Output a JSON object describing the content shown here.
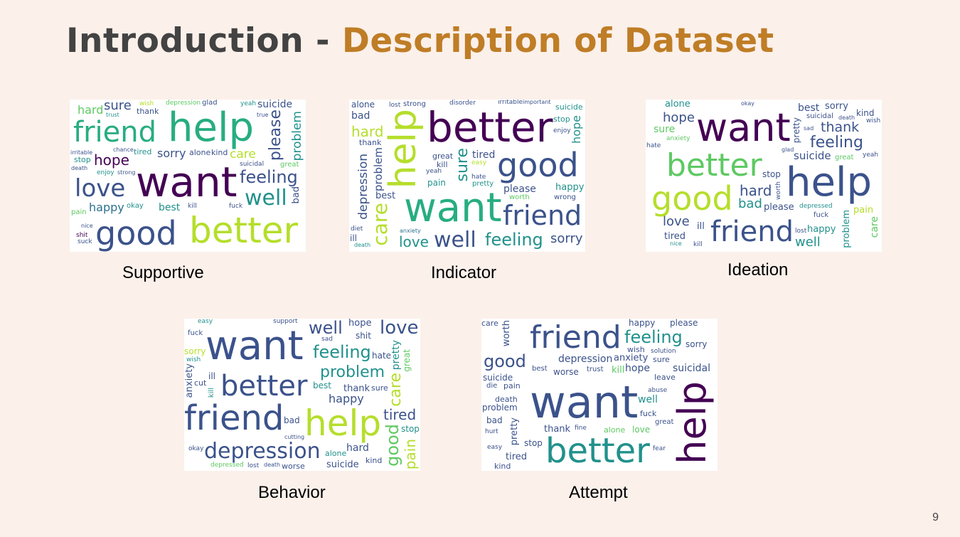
{
  "slide": {
    "title_part1": "Introduction",
    "title_sep": " - ",
    "title_part2": "Description of Dataset",
    "page_number": "9"
  },
  "palette": [
    "#440154",
    "#3b528b",
    "#21918c",
    "#5ec962",
    "#b5de2b",
    "#2c728e",
    "#27ad81",
    "#6ece58"
  ],
  "clouds": [
    {
      "id": "supportive",
      "caption": "Supportive",
      "words": [
        {
          "t": "want",
          "s": 58,
          "c": 0
        },
        {
          "t": "better",
          "s": 50,
          "c": 4
        },
        {
          "t": "help",
          "s": 56,
          "c": 6
        },
        {
          "t": "good",
          "s": 46,
          "c": 1
        },
        {
          "t": "friend",
          "s": 40,
          "c": 6
        },
        {
          "t": "love",
          "s": 34,
          "c": 1
        },
        {
          "t": "well",
          "s": 30,
          "c": 2
        },
        {
          "t": "feeling",
          "s": 24,
          "c": 1
        },
        {
          "t": "please",
          "s": 22,
          "c": 1,
          "v": true
        },
        {
          "t": "hope",
          "s": 20,
          "c": 0
        },
        {
          "t": "problem",
          "s": 17,
          "c": 2,
          "v": true
        },
        {
          "t": "sure",
          "s": 18,
          "c": 1
        },
        {
          "t": "happy",
          "s": 16,
          "c": 5
        },
        {
          "t": "hard",
          "s": 16,
          "c": 3
        },
        {
          "t": "sorry",
          "s": 16,
          "c": 1
        },
        {
          "t": "care",
          "s": 17,
          "c": 4
        },
        {
          "t": "suicide",
          "s": 14,
          "c": 1
        },
        {
          "t": "best",
          "s": 14,
          "c": 2
        },
        {
          "t": "bad",
          "s": 13,
          "c": 1,
          "v": true
        },
        {
          "t": "kind",
          "s": 11,
          "c": 1
        },
        {
          "t": "alone",
          "s": 11,
          "c": 1
        },
        {
          "t": "stop",
          "s": 11,
          "c": 2
        },
        {
          "t": "tired",
          "s": 11,
          "c": 2
        },
        {
          "t": "thank",
          "s": 11,
          "c": 1
        },
        {
          "t": "okay",
          "s": 10,
          "c": 2
        },
        {
          "t": "pain",
          "s": 10,
          "c": 3
        },
        {
          "t": "glad",
          "s": 10,
          "c": 1
        },
        {
          "t": "great",
          "s": 10,
          "c": 3
        },
        {
          "t": "suck",
          "s": 9,
          "c": 1
        },
        {
          "t": "shit",
          "s": 9,
          "c": 0
        },
        {
          "t": "strong",
          "s": 8,
          "c": 1
        },
        {
          "t": "enjoy",
          "s": 9,
          "c": 2
        },
        {
          "t": "fuck",
          "s": 9,
          "c": 1
        },
        {
          "t": "kill",
          "s": 9,
          "c": 1
        },
        {
          "t": "trust",
          "s": 8,
          "c": 2
        },
        {
          "t": "suicidal",
          "s": 9,
          "c": 1
        },
        {
          "t": "depression",
          "s": 9,
          "c": 3
        },
        {
          "t": "death",
          "s": 8,
          "c": 1
        },
        {
          "t": "wish",
          "s": 9,
          "c": 4
        },
        {
          "t": "yeah",
          "s": 9,
          "c": 2
        },
        {
          "t": "nice",
          "s": 8,
          "c": 1
        },
        {
          "t": "true",
          "s": 8,
          "c": 1
        },
        {
          "t": "irritable",
          "s": 8,
          "c": 1
        },
        {
          "t": "chance",
          "s": 8,
          "c": 1
        }
      ]
    },
    {
      "id": "indicator",
      "caption": "Indicator",
      "words": [
        {
          "t": "better",
          "s": 58,
          "c": 0
        },
        {
          "t": "want",
          "s": 56,
          "c": 6
        },
        {
          "t": "help",
          "s": 52,
          "c": 4,
          "v": true
        },
        {
          "t": "good",
          "s": 46,
          "c": 1
        },
        {
          "t": "friend",
          "s": 38,
          "c": 1
        },
        {
          "t": "well",
          "s": 30,
          "c": 1
        },
        {
          "t": "feeling",
          "s": 24,
          "c": 2
        },
        {
          "t": "care",
          "s": 28,
          "c": 4,
          "v": true
        },
        {
          "t": "sure",
          "s": 22,
          "c": 2,
          "v": true
        },
        {
          "t": "depression",
          "s": 17,
          "c": 1,
          "v": true
        },
        {
          "t": "hard",
          "s": 20,
          "c": 4
        },
        {
          "t": "love",
          "s": 20,
          "c": 2
        },
        {
          "t": "sorry",
          "s": 18,
          "c": 1
        },
        {
          "t": "hope",
          "s": 16,
          "c": 2,
          "v": true
        },
        {
          "t": "problem",
          "s": 15,
          "c": 1,
          "v": true
        },
        {
          "t": "please",
          "s": 14,
          "c": 1
        },
        {
          "t": "bad",
          "s": 14,
          "c": 1
        },
        {
          "t": "tired",
          "s": 14,
          "c": 1
        },
        {
          "t": "happy",
          "s": 13,
          "c": 2
        },
        {
          "t": "best",
          "s": 13,
          "c": 1
        },
        {
          "t": "alone",
          "s": 12,
          "c": 1
        },
        {
          "t": "pain",
          "s": 12,
          "c": 2
        },
        {
          "t": "suicide",
          "s": 11,
          "c": 2
        },
        {
          "t": "thank",
          "s": 11,
          "c": 1
        },
        {
          "t": "stop",
          "s": 11,
          "c": 2
        },
        {
          "t": "great",
          "s": 11,
          "c": 1
        },
        {
          "t": "kill",
          "s": 11,
          "c": 1
        },
        {
          "t": "strong",
          "s": 10,
          "c": 1
        },
        {
          "t": "wrong",
          "s": 10,
          "c": 1
        },
        {
          "t": "pretty",
          "s": 10,
          "c": 2
        },
        {
          "t": "worth",
          "s": 10,
          "c": 3
        },
        {
          "t": "lost",
          "s": 9,
          "c": 1
        },
        {
          "t": "disorder",
          "s": 9,
          "c": 1
        },
        {
          "t": "irritable",
          "s": 9,
          "c": 1
        },
        {
          "t": "ill",
          "s": 12,
          "c": 1
        },
        {
          "t": "yeah",
          "s": 9,
          "c": 1
        },
        {
          "t": "enjoy",
          "s": 9,
          "c": 1
        },
        {
          "t": "depressed",
          "s": 9,
          "c": 1
        },
        {
          "t": "important",
          "s": 8,
          "c": 1
        },
        {
          "t": "easy",
          "s": 9,
          "c": 4
        },
        {
          "t": "hate",
          "s": 9,
          "c": 1
        },
        {
          "t": "anxiety",
          "s": 8,
          "c": 5
        },
        {
          "t": "death",
          "s": 8,
          "c": 2
        },
        {
          "t": "diet",
          "s": 9,
          "c": 1
        }
      ]
    },
    {
      "id": "ideation",
      "caption": "Ideation",
      "words": [
        {
          "t": "want",
          "s": 54,
          "c": 0
        },
        {
          "t": "help",
          "s": 56,
          "c": 1
        },
        {
          "t": "better",
          "s": 44,
          "c": 3
        },
        {
          "t": "good",
          "s": 46,
          "c": 4
        },
        {
          "t": "friend",
          "s": 40,
          "c": 1
        },
        {
          "t": "depression",
          "s": 24,
          "c": 1
        },
        {
          "t": "feeling",
          "s": 22,
          "c": 1
        },
        {
          "t": "hard",
          "s": 20,
          "c": 1
        },
        {
          "t": "thank",
          "s": 19,
          "c": 1
        },
        {
          "t": "love",
          "s": 18,
          "c": 1
        },
        {
          "t": "hope",
          "s": 18,
          "c": 1
        },
        {
          "t": "well",
          "s": 18,
          "c": 2
        },
        {
          "t": "suicide",
          "s": 15,
          "c": 1
        },
        {
          "t": "bad",
          "s": 18,
          "c": 2
        },
        {
          "t": "problem",
          "s": 13,
          "c": 2,
          "v": true
        },
        {
          "t": "pretty",
          "s": 12,
          "c": 1,
          "v": true
        },
        {
          "t": "tired",
          "s": 13,
          "c": 1
        },
        {
          "t": "sorry",
          "s": 13,
          "c": 1
        },
        {
          "t": "happy",
          "s": 13,
          "c": 2
        },
        {
          "t": "sure",
          "s": 14,
          "c": 3
        },
        {
          "t": "best",
          "s": 14,
          "c": 1
        },
        {
          "t": "kind",
          "s": 12,
          "c": 1
        },
        {
          "t": "care",
          "s": 14,
          "c": 3,
          "v": true
        },
        {
          "t": "stop",
          "s": 12,
          "c": 1
        },
        {
          "t": "alone",
          "s": 13,
          "c": 2
        },
        {
          "t": "please",
          "s": 13,
          "c": 1
        },
        {
          "t": "pain",
          "s": 13,
          "c": 4
        },
        {
          "t": "ill",
          "s": 13,
          "c": 1
        },
        {
          "t": "yeah",
          "s": 9,
          "c": 1
        },
        {
          "t": "great",
          "s": 10,
          "c": 3
        },
        {
          "t": "suicidal",
          "s": 10,
          "c": 1
        },
        {
          "t": "fuck",
          "s": 10,
          "c": 1
        },
        {
          "t": "depressed",
          "s": 9,
          "c": 2
        },
        {
          "t": "wish",
          "s": 9,
          "c": 1
        },
        {
          "t": "death",
          "s": 8,
          "c": 1
        },
        {
          "t": "anxiety",
          "s": 9,
          "c": 3
        },
        {
          "t": "lost",
          "s": 9,
          "c": 1
        },
        {
          "t": "worth",
          "s": 9,
          "c": 1,
          "v": true
        },
        {
          "t": "hate",
          "s": 9,
          "c": 1
        },
        {
          "t": "sad",
          "s": 8,
          "c": 1
        },
        {
          "t": "glad",
          "s": 8,
          "c": 1
        },
        {
          "t": "okay",
          "s": 8,
          "c": 1
        },
        {
          "t": "kill",
          "s": 9,
          "c": 1
        },
        {
          "t": "nice",
          "s": 8,
          "c": 2
        }
      ]
    },
    {
      "id": "behavior",
      "caption": "Behavior",
      "words": [
        {
          "t": "want",
          "s": 56,
          "c": 1
        },
        {
          "t": "friend",
          "s": 48,
          "c": 1
        },
        {
          "t": "help",
          "s": 50,
          "c": 4
        },
        {
          "t": "better",
          "s": 40,
          "c": 1
        },
        {
          "t": "depression",
          "s": 30,
          "c": 1
        },
        {
          "t": "love",
          "s": 26,
          "c": 1
        },
        {
          "t": "feeling",
          "s": 24,
          "c": 2
        },
        {
          "t": "problem",
          "s": 22,
          "c": 2
        },
        {
          "t": "well",
          "s": 24,
          "c": 1
        },
        {
          "t": "tired",
          "s": 20,
          "c": 1
        },
        {
          "t": "good",
          "s": 24,
          "c": 3,
          "v": true
        },
        {
          "t": "care",
          "s": 22,
          "c": 4,
          "v": true
        },
        {
          "t": "pain",
          "s": 20,
          "c": 4,
          "v": true
        },
        {
          "t": "happy",
          "s": 16,
          "c": 1
        },
        {
          "t": "pretty",
          "s": 14,
          "c": 2,
          "v": true
        },
        {
          "t": "anxiety",
          "s": 13,
          "c": 1,
          "v": true
        },
        {
          "t": "hope",
          "s": 13,
          "c": 1
        },
        {
          "t": "thank",
          "s": 13,
          "c": 1
        },
        {
          "t": "suicide",
          "s": 13,
          "c": 1
        },
        {
          "t": "hard",
          "s": 14,
          "c": 1
        },
        {
          "t": "sorry",
          "s": 12,
          "c": 4
        },
        {
          "t": "stop",
          "s": 12,
          "c": 2
        },
        {
          "t": "kind",
          "s": 11,
          "c": 1
        },
        {
          "t": "hate",
          "s": 12,
          "c": 1
        },
        {
          "t": "best",
          "s": 12,
          "c": 2
        },
        {
          "t": "shit",
          "s": 12,
          "c": 1
        },
        {
          "t": "bad",
          "s": 12,
          "c": 1
        },
        {
          "t": "ill",
          "s": 12,
          "c": 1
        },
        {
          "t": "great",
          "s": 12,
          "c": 3,
          "v": true
        },
        {
          "t": "sure",
          "s": 11,
          "c": 1
        },
        {
          "t": "alone",
          "s": 11,
          "c": 2
        },
        {
          "t": "worse",
          "s": 11,
          "c": 1
        },
        {
          "t": "cut",
          "s": 11,
          "c": 1
        },
        {
          "t": "fuck",
          "s": 10,
          "c": 1
        },
        {
          "t": "wish",
          "s": 9,
          "c": 2
        },
        {
          "t": "okay",
          "s": 9,
          "c": 1
        },
        {
          "t": "sad",
          "s": 9,
          "c": 1
        },
        {
          "t": "easy",
          "s": 9,
          "c": 2
        },
        {
          "t": "support",
          "s": 9,
          "c": 1
        },
        {
          "t": "depressed",
          "s": 9,
          "c": 3
        },
        {
          "t": "lost",
          "s": 9,
          "c": 1
        },
        {
          "t": "kill",
          "s": 10,
          "c": 2,
          "v": true
        },
        {
          "t": "cutting",
          "s": 8,
          "c": 1
        },
        {
          "t": "death",
          "s": 8,
          "c": 1
        }
      ]
    },
    {
      "id": "attempt",
      "caption": "Attempt",
      "words": [
        {
          "t": "want",
          "s": 62,
          "c": 1
        },
        {
          "t": "better",
          "s": 48,
          "c": 2
        },
        {
          "t": "help",
          "s": 54,
          "c": 0,
          "v": true
        },
        {
          "t": "friend",
          "s": 44,
          "c": 1
        },
        {
          "t": "feeling",
          "s": 24,
          "c": 2
        },
        {
          "t": "good",
          "s": 24,
          "c": 1
        },
        {
          "t": "depression",
          "s": 14,
          "c": 1
        },
        {
          "t": "suicidal",
          "s": 14,
          "c": 1
        },
        {
          "t": "hope",
          "s": 14,
          "c": 1
        },
        {
          "t": "problem",
          "s": 12,
          "c": 1
        },
        {
          "t": "tired",
          "s": 13,
          "c": 1
        },
        {
          "t": "anxiety",
          "s": 13,
          "c": 1
        },
        {
          "t": "pretty",
          "s": 13,
          "c": 1,
          "v": true
        },
        {
          "t": "worth",
          "s": 13,
          "c": 1,
          "v": true
        },
        {
          "t": "kill",
          "s": 13,
          "c": 3
        },
        {
          "t": "well",
          "s": 14,
          "c": 2
        },
        {
          "t": "thank",
          "s": 13,
          "c": 1
        },
        {
          "t": "please",
          "s": 12,
          "c": 1
        },
        {
          "t": "sorry",
          "s": 12,
          "c": 1
        },
        {
          "t": "happy",
          "s": 12,
          "c": 1
        },
        {
          "t": "suicide",
          "s": 12,
          "c": 1
        },
        {
          "t": "worse",
          "s": 12,
          "c": 1
        },
        {
          "t": "bad",
          "s": 12,
          "c": 1
        },
        {
          "t": "stop",
          "s": 12,
          "c": 1
        },
        {
          "t": "love",
          "s": 12,
          "c": 3
        },
        {
          "t": "care",
          "s": 11,
          "c": 1
        },
        {
          "t": "alone",
          "s": 11,
          "c": 3
        },
        {
          "t": "pain",
          "s": 11,
          "c": 1
        },
        {
          "t": "death",
          "s": 11,
          "c": 1
        },
        {
          "t": "sure",
          "s": 11,
          "c": 1
        },
        {
          "t": "leave",
          "s": 11,
          "c": 1
        },
        {
          "t": "wish",
          "s": 11,
          "c": 1
        },
        {
          "t": "fuck",
          "s": 11,
          "c": 1
        },
        {
          "t": "kind",
          "s": 11,
          "c": 1
        },
        {
          "t": "great",
          "s": 10,
          "c": 1
        },
        {
          "t": "trust",
          "s": 10,
          "c": 1
        },
        {
          "t": "best",
          "s": 10,
          "c": 1
        },
        {
          "t": "solution",
          "s": 9,
          "c": 1
        },
        {
          "t": "die",
          "s": 10,
          "c": 1
        },
        {
          "t": "abuse",
          "s": 9,
          "c": 1
        },
        {
          "t": "easy",
          "s": 9,
          "c": 1
        },
        {
          "t": "hurt",
          "s": 9,
          "c": 1
        },
        {
          "t": "fine",
          "s": 9,
          "c": 1
        },
        {
          "t": "fear",
          "s": 9,
          "c": 1
        }
      ]
    }
  ]
}
